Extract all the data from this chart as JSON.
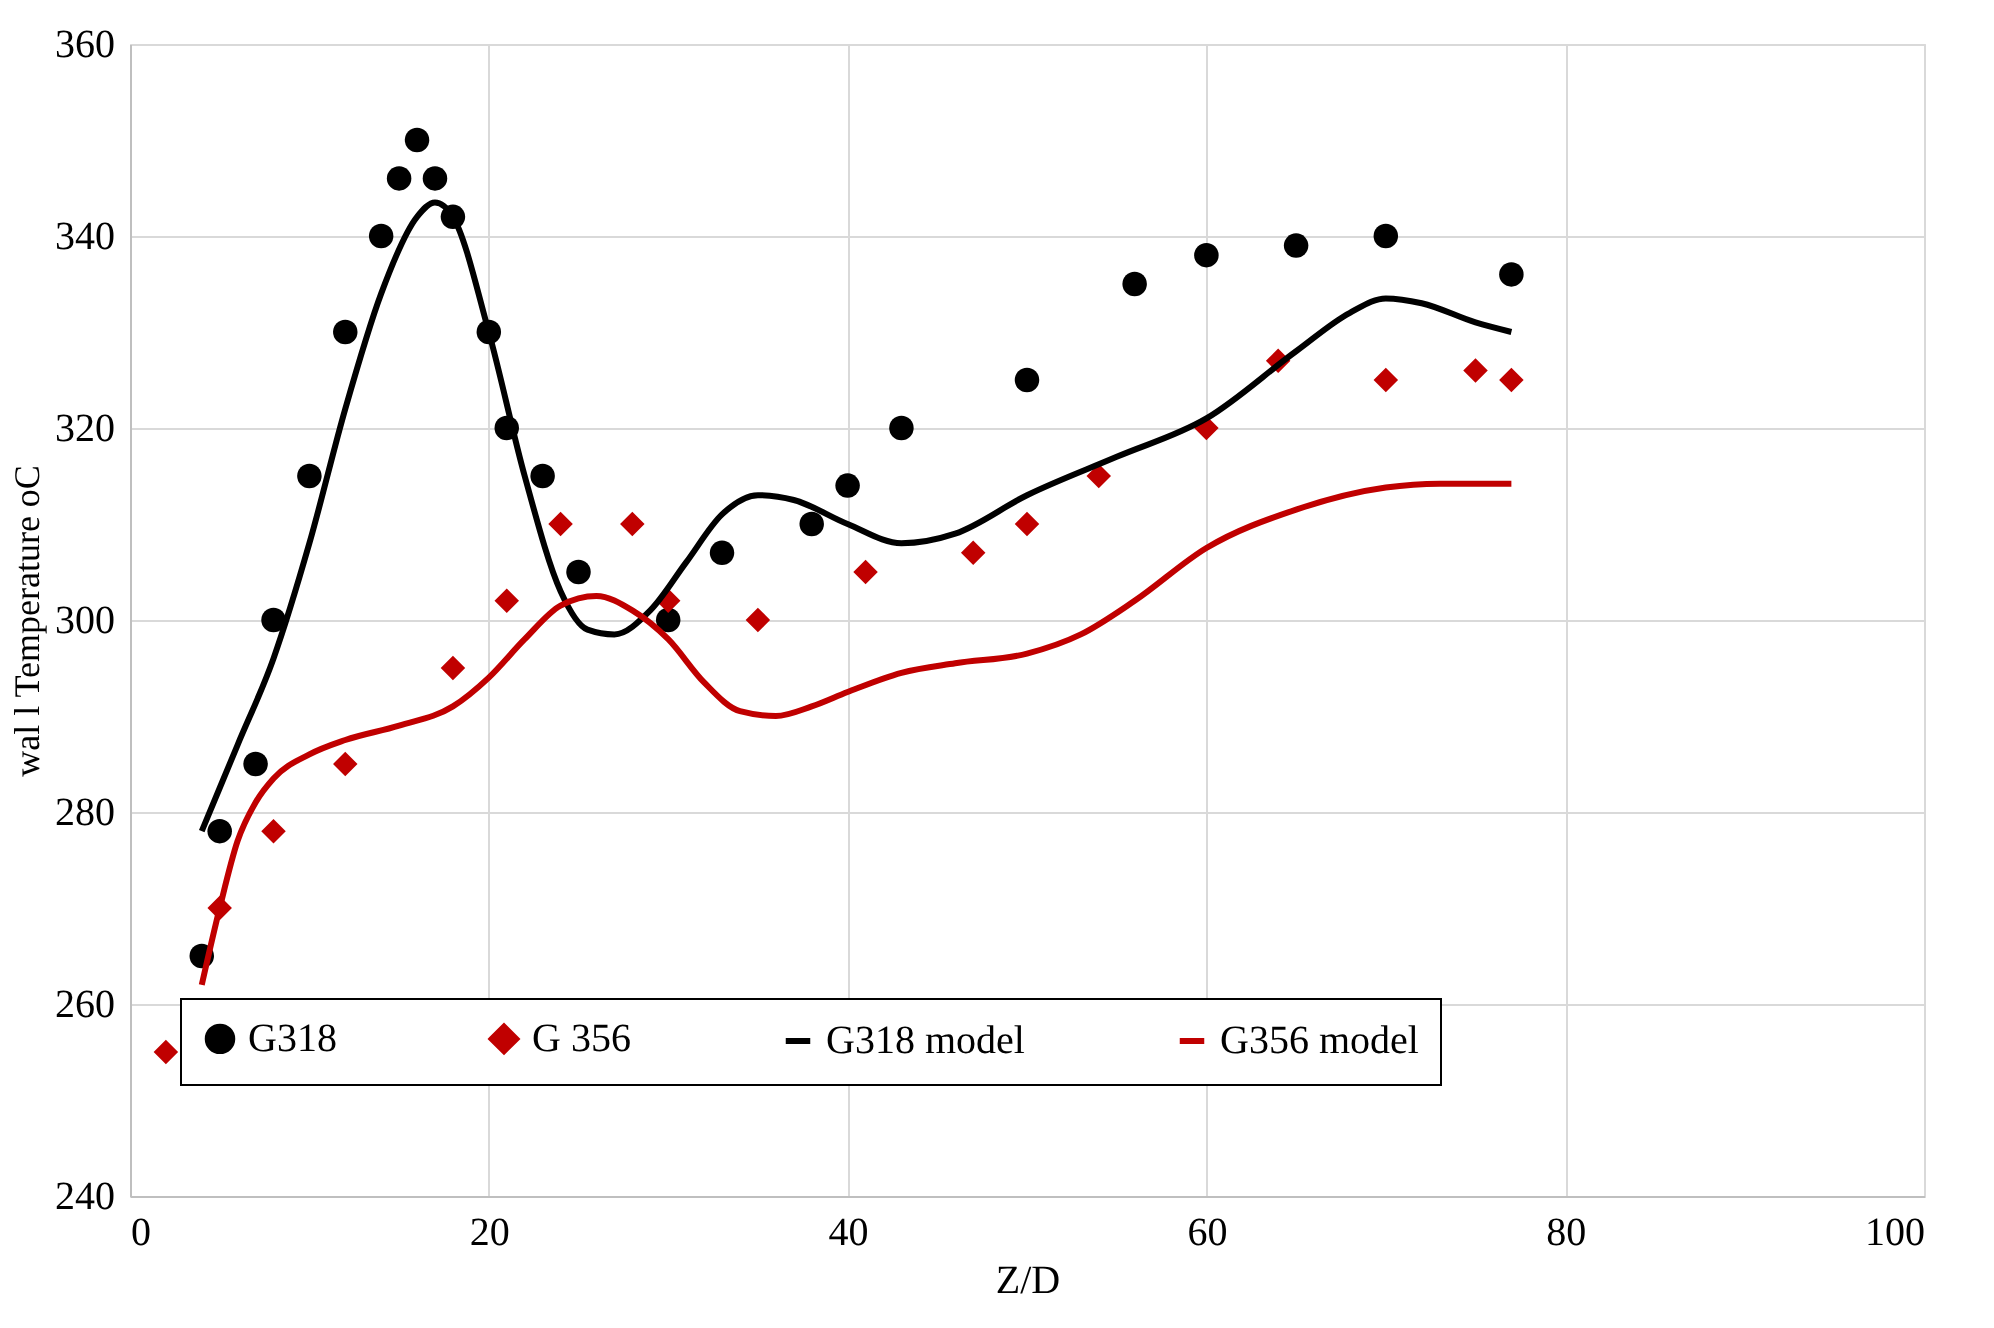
{
  "chart_data": {
    "type": "scatter",
    "xlabel": "Z/D",
    "ylabel": "wal l Temperature oC",
    "xlim": [
      0,
      100
    ],
    "xticks": [
      0,
      20,
      40,
      60,
      80,
      100
    ],
    "ylim": [
      240,
      360
    ],
    "yticks": [
      240,
      260,
      280,
      300,
      320,
      340,
      360
    ],
    "grid": true,
    "legend": "bottom",
    "series": [
      {
        "name": "G318",
        "marker": "circle",
        "color": "#000000",
        "x": [
          4,
          5,
          7,
          8,
          10,
          12,
          14,
          15,
          16,
          17,
          18,
          20,
          21,
          23,
          25,
          30,
          33,
          38,
          40,
          43,
          50,
          56,
          60,
          65,
          70,
          77
        ],
        "values": [
          265,
          278,
          285,
          300,
          315,
          330,
          340,
          346,
          350,
          346,
          342,
          330,
          320,
          315,
          305,
          300,
          307,
          310,
          314,
          320,
          325,
          335,
          338,
          339,
          340,
          336
        ]
      },
      {
        "name": "G 356",
        "marker": "diamond",
        "color": "#c00000",
        "x": [
          2,
          5,
          8,
          12,
          18,
          21,
          24,
          28,
          30,
          35,
          41,
          47,
          50,
          54,
          60,
          64,
          70,
          75,
          77
        ],
        "values": [
          255,
          270,
          278,
          285,
          295,
          302,
          310,
          310,
          302,
          300,
          305,
          307,
          310,
          315,
          320,
          327,
          325,
          326,
          325
        ]
      },
      {
        "name": "G318 model",
        "type": "line",
        "color": "#000000",
        "x": [
          4,
          6,
          8,
          10,
          12,
          14,
          16,
          17,
          18,
          20,
          22,
          24,
          25.5,
          27,
          29,
          31,
          33,
          35,
          37,
          40,
          43,
          46,
          50,
          55,
          60,
          65,
          68,
          70,
          72,
          75,
          77
        ],
        "values": [
          278,
          287,
          296,
          308,
          322,
          334,
          342,
          343.5,
          342,
          330,
          315,
          303,
          299,
          298.5,
          301,
          306,
          311,
          313,
          312.5,
          310,
          308,
          309,
          313,
          317,
          321,
          328,
          332,
          333.5,
          333,
          331,
          330
        ]
      },
      {
        "name": "G356 model",
        "type": "line",
        "color": "#c00000",
        "x": [
          4,
          5,
          6,
          7,
          8,
          10,
          12,
          15,
          18,
          20,
          22,
          24,
          26,
          28,
          30,
          32,
          34,
          36,
          38,
          40,
          43,
          46,
          50,
          53,
          56,
          60,
          65,
          70,
          73,
          77
        ],
        "values": [
          262,
          270,
          277,
          281,
          283.5,
          286,
          287.5,
          289,
          291,
          294,
          298,
          301.5,
          302.5,
          301,
          298,
          293.5,
          290.5,
          290,
          291,
          292.5,
          294.5,
          295.5,
          296.5,
          298.5,
          302,
          307.5,
          311.5,
          313.8,
          314.2,
          314.2
        ]
      }
    ]
  }
}
